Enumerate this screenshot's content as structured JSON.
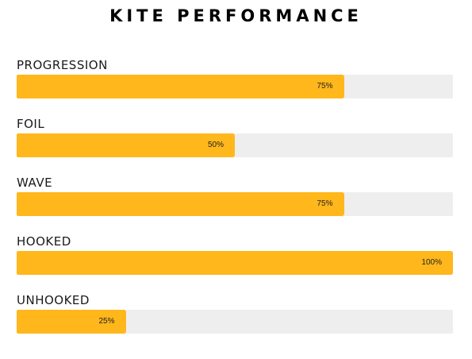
{
  "title": "KITE PERFORMANCE",
  "accent_color": "#ffb71b",
  "track_color": "#eeeeee",
  "bars": [
    {
      "label": "PROGRESSION",
      "value": 75,
      "value_label": "75%"
    },
    {
      "label": "FOIL",
      "value": 50,
      "value_label": "50%"
    },
    {
      "label": "WAVE",
      "value": 75,
      "value_label": "75%"
    },
    {
      "label": "HOOKED",
      "value": 100,
      "value_label": "100%"
    },
    {
      "label": "UNHOOKED",
      "value": 25,
      "value_label": "25%"
    }
  ]
}
